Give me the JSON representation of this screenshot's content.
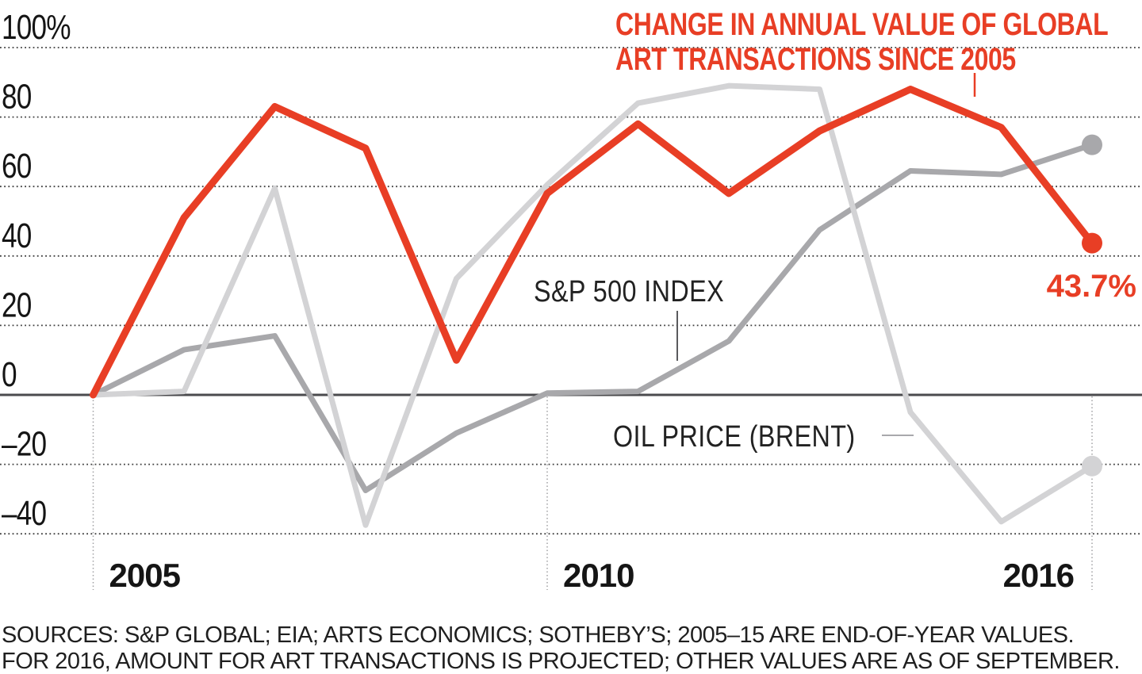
{
  "title": {
    "line1": "CHANGE IN ANNUAL VALUE OF GLOBAL",
    "line2": "ART TRANSACTIONS SINCE 2005"
  },
  "annotations": {
    "sp500_label": "S&P 500 INDEX",
    "oil_label": "OIL PRICE (BRENT)",
    "art_end_value": "43.7%"
  },
  "sources": {
    "line1": "SOURCES: S&P GLOBAL; EIA; ARTS ECONOMICS; SOTHEBY’S; 2005–15 ARE END-OF-YEAR VALUES.",
    "line2": "FOR 2016, AMOUNT FOR ART TRANSACTIONS IS PROJECTED; OTHER VALUES ARE AS OF SEPTEMBER."
  },
  "colors": {
    "art_red": "#e83e25",
    "sp500_gray": "#a8a8ab",
    "oil_gray": "#d3d3d5",
    "axis": "#4b4b4e",
    "grid_dot": "#3f3f3f",
    "year_grid": "#a0a0a3",
    "tick_text": "#151515"
  },
  "chart_data": {
    "type": "line",
    "x": [
      2005,
      2006,
      2007,
      2008,
      2009,
      2010,
      2011,
      2012,
      2013,
      2014,
      2015,
      2016
    ],
    "series": [
      {
        "key": "art_transactions",
        "name": "Change in annual value of global art transactions since 2005",
        "color": "#e83e25",
        "values": [
          0,
          51,
          83,
          71,
          10,
          58,
          78,
          58,
          76,
          88,
          77,
          43.7
        ],
        "end_dot": true,
        "end_label": "43.7%"
      },
      {
        "key": "sp500",
        "name": "S&P 500 Index",
        "color": "#a8a8ab",
        "values": [
          0,
          13,
          17,
          -27.5,
          -11,
          0.5,
          1,
          15.5,
          47.5,
          64.5,
          63.5,
          72
        ],
        "end_dot": true
      },
      {
        "key": "oil_brent",
        "name": "Oil price (Brent)",
        "color": "#d3d3d5",
        "values": [
          0,
          1,
          59.5,
          -37.5,
          33.5,
          60.5,
          84,
          89,
          88,
          -5,
          -36.5,
          -20.5
        ],
        "end_dot": true
      }
    ],
    "y_axis": {
      "unit": "percent change since 2005",
      "range": [
        -52,
        104
      ],
      "grid": "dotted",
      "ticks": [
        {
          "value": 100,
          "label": "100%"
        },
        {
          "value": 80,
          "label": "80"
        },
        {
          "value": 60,
          "label": "60"
        },
        {
          "value": 40,
          "label": "40"
        },
        {
          "value": 20,
          "label": "20"
        },
        {
          "value": 0,
          "label": "0"
        },
        {
          "value": -20,
          "label": "–20"
        },
        {
          "value": -40,
          "label": "–40"
        }
      ]
    },
    "x_axis": {
      "ticks": [
        {
          "value": 2005,
          "label": "2005"
        },
        {
          "value": 2010,
          "label": "2010"
        },
        {
          "value": 2016,
          "label": "2016"
        }
      ]
    },
    "legend_position": "inline-labels"
  }
}
